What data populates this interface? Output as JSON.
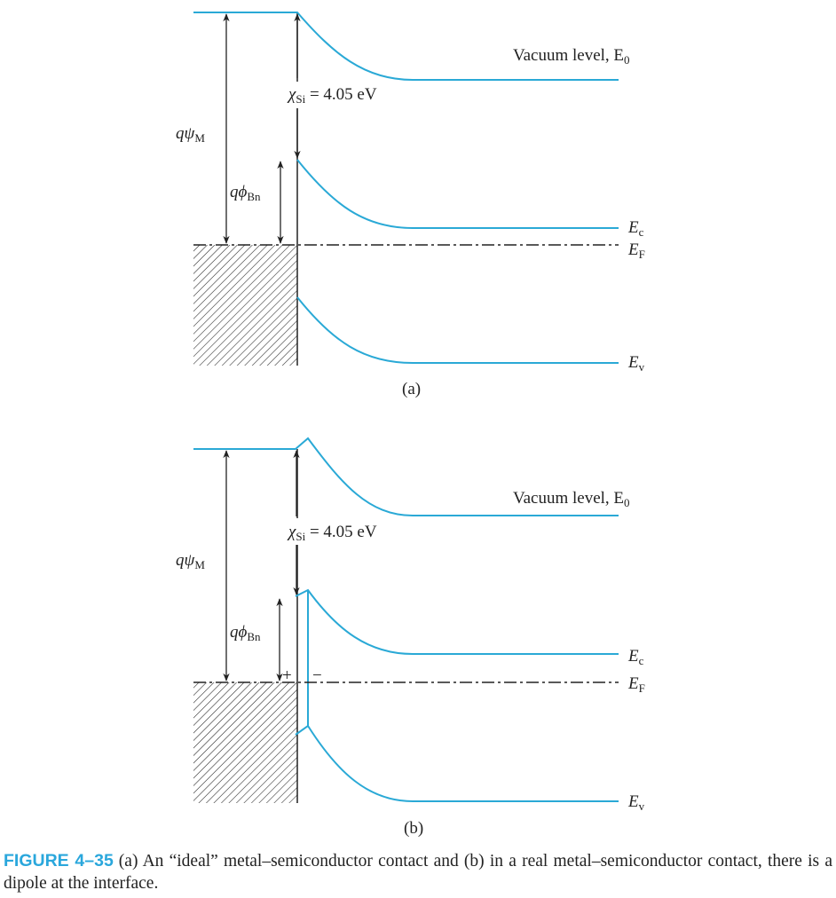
{
  "colors": {
    "band": "#2aa9d6",
    "ink": "#222222",
    "figure_label": "#2aa7dc"
  },
  "panels": [
    {
      "id": "a",
      "tag": "(a)",
      "vacuum_label": "Vacuum level, E",
      "vacuum_sub": "0",
      "chi_label": "χ",
      "chi_sub": "Si",
      "chi_value": " = 4.05 eV",
      "psi_label": "qψ",
      "psi_sub": "M",
      "phi_label": "qϕ",
      "phi_sub": "Bn",
      "ec": "E",
      "ec_sub": "c",
      "ef": "E",
      "ef_sub": "F",
      "ev": "E",
      "ev_sub": "v"
    },
    {
      "id": "b",
      "tag": "(b)",
      "vacuum_label": "Vacuum level, E",
      "vacuum_sub": "0",
      "chi_label": "χ",
      "chi_sub": "Si",
      "chi_value": " = 4.05 eV",
      "psi_label": "qψ",
      "psi_sub": "M",
      "phi_label": "qϕ",
      "phi_sub": "Bn",
      "ec": "E",
      "ec_sub": "c",
      "ef": "E",
      "ef_sub": "F",
      "ev": "E",
      "ev_sub": "v",
      "plus": "+",
      "minus": "−"
    }
  ],
  "caption": {
    "figure": "FIGURE 4–35",
    "text": "(a) An “ideal” metal–semiconductor contact and (b) in a real metal–semiconductor contact, there is a dipole at the interface."
  }
}
